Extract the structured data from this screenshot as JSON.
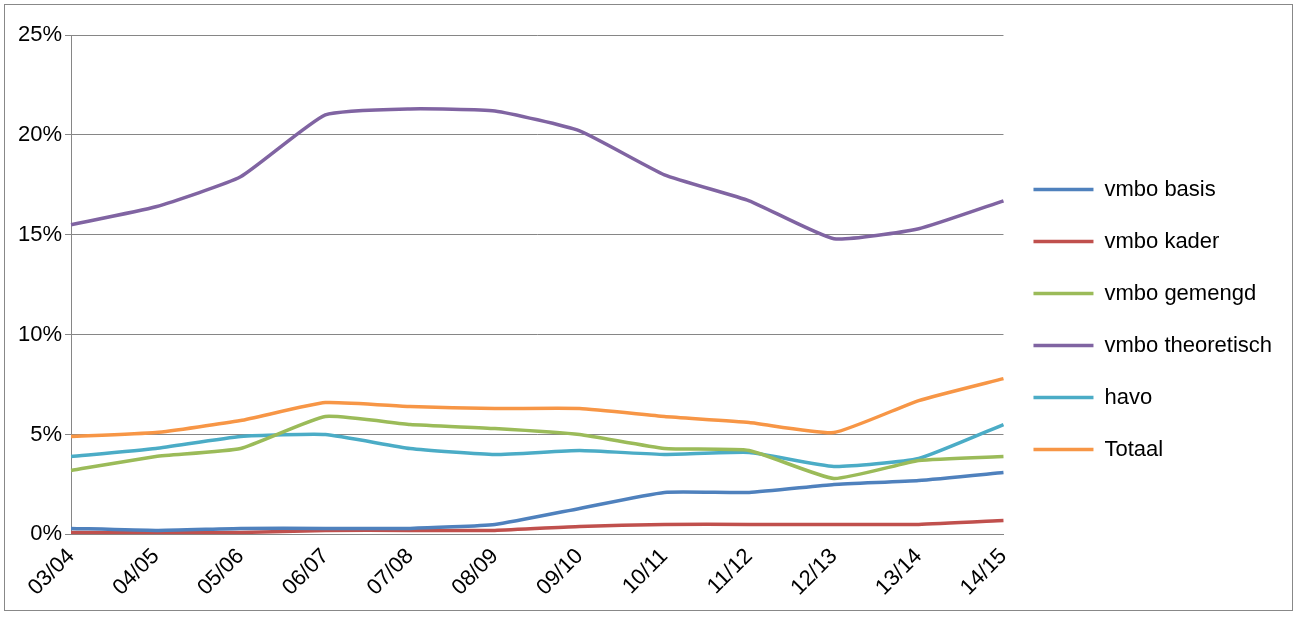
{
  "chart_data": {
    "type": "line",
    "categories": [
      "03/04",
      "04/05",
      "05/06",
      "06/07",
      "07/08",
      "08/09",
      "09/10",
      "10/11",
      "11/12",
      "12/13",
      "13/14",
      "14/15"
    ],
    "series": [
      {
        "name": "vmbo basis",
        "color": "#4f81bd",
        "values": [
          0.3,
          0.2,
          0.3,
          0.3,
          0.3,
          0.5,
          1.3,
          2.1,
          2.1,
          2.5,
          2.7,
          3.1
        ]
      },
      {
        "name": "vmbo kader",
        "color": "#c0504d",
        "values": [
          0.1,
          0.1,
          0.1,
          0.2,
          0.2,
          0.2,
          0.4,
          0.5,
          0.5,
          0.5,
          0.5,
          0.7
        ]
      },
      {
        "name": "vmbo gemengd",
        "color": "#9bbb59",
        "values": [
          3.2,
          3.9,
          4.3,
          5.9,
          5.5,
          5.3,
          5.0,
          4.3,
          4.2,
          2.8,
          3.7,
          3.9
        ]
      },
      {
        "name": "vmbo theoretisch",
        "color": "#8064a2",
        "values": [
          15.5,
          16.4,
          17.9,
          21.0,
          21.3,
          21.2,
          20.2,
          18.0,
          16.7,
          14.8,
          15.3,
          16.7
        ]
      },
      {
        "name": "havo",
        "color": "#4bacc6",
        "values": [
          3.9,
          4.3,
          4.9,
          5.0,
          4.3,
          4.0,
          4.2,
          4.0,
          4.1,
          3.4,
          3.8,
          5.5
        ]
      },
      {
        "name": "Totaal",
        "color": "#f79646",
        "values": [
          4.9,
          5.1,
          5.7,
          6.6,
          6.4,
          6.3,
          6.3,
          5.9,
          5.6,
          5.1,
          6.7,
          7.8
        ]
      }
    ],
    "ylim": [
      0,
      25
    ],
    "yticks": [
      {
        "value": 0,
        "label": "0%"
      },
      {
        "value": 5,
        "label": "5%"
      },
      {
        "value": 10,
        "label": "10%"
      },
      {
        "value": 15,
        "label": "15%"
      },
      {
        "value": 20,
        "label": "20%"
      },
      {
        "value": 25,
        "label": "25%"
      }
    ],
    "grid": true,
    "legend": "right"
  }
}
